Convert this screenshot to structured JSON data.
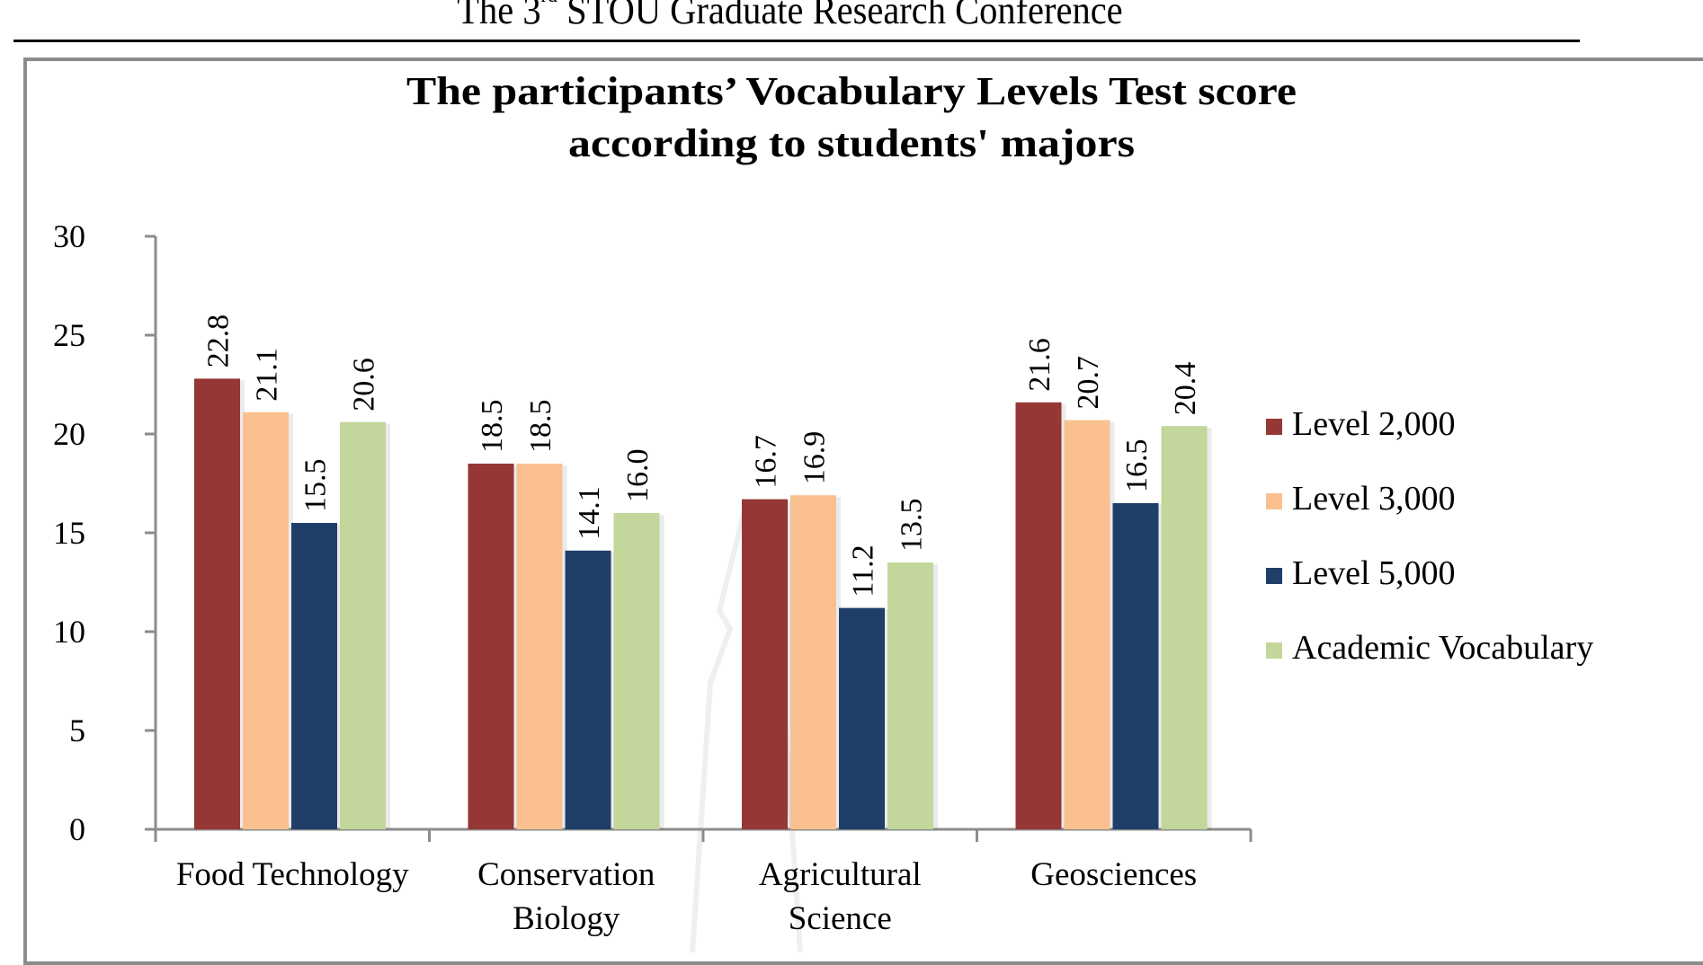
{
  "page_header": {
    "prefix": "The 3",
    "superscript": "rd",
    "suffix": " STOU Graduate Research Conference"
  },
  "chart_data": {
    "type": "bar",
    "title": "The participants’ Vocabulary Levels Test score according to students' majors",
    "title_lines": [
      "The participants’ Vocabulary Levels Test score",
      "according to students' majors"
    ],
    "xlabel": "",
    "ylabel": "",
    "ylim": [
      0,
      30
    ],
    "yticks": [
      0,
      5,
      10,
      15,
      20,
      25,
      30
    ],
    "grid": false,
    "legend_position": "right",
    "categories": [
      "Food Technology",
      "Conservation Biology",
      "Agricultural Science",
      "Geosciences"
    ],
    "category_lines": [
      [
        "Food Technology"
      ],
      [
        "Conservation",
        "Biology"
      ],
      [
        "Agricultural",
        "Science"
      ],
      [
        "Geosciences"
      ]
    ],
    "series": [
      {
        "name": "Level 2,000",
        "color": "#953735",
        "values": [
          22.8,
          18.5,
          16.7,
          21.6
        ]
      },
      {
        "name": "Level 3,000",
        "color": "#FAC090",
        "values": [
          21.1,
          18.5,
          16.9,
          20.7
        ]
      },
      {
        "name": "Level 5,000",
        "color": "#1F3F68",
        "values": [
          15.5,
          14.1,
          11.2,
          16.5
        ]
      },
      {
        "name": "Academic Vocabulary",
        "color": "#C3D69B",
        "values": [
          20.6,
          16.0,
          13.5,
          20.4
        ]
      }
    ],
    "value_labels": [
      [
        "22.8",
        "21.1",
        "15.5",
        "20.6"
      ],
      [
        "18.5",
        "18.5",
        "14.1",
        "16.0"
      ],
      [
        "16.7",
        "16.9",
        "11.2",
        "13.5"
      ],
      [
        "21.6",
        "20.7",
        "16.5",
        "20.4"
      ]
    ]
  }
}
